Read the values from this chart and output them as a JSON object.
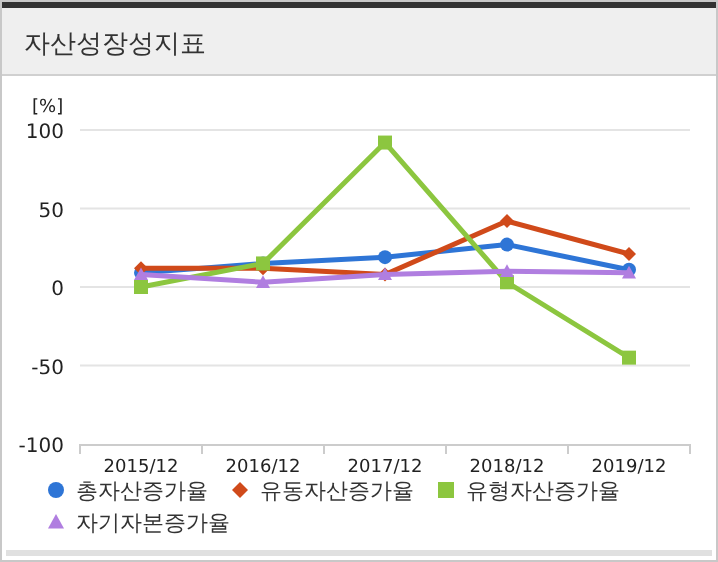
{
  "chart_data": {
    "type": "line",
    "title": "자산성장성지표",
    "ylabel": "[%]",
    "categories": [
      "2015/12",
      "2016/12",
      "2017/12",
      "2018/12",
      "2019/12"
    ],
    "series": [
      {
        "name": "총자산증가율",
        "color": "#2e75d6",
        "marker": "circle",
        "values": [
          9,
          15,
          19,
          27,
          11
        ]
      },
      {
        "name": "유동자산증가율",
        "color": "#d04a1a",
        "marker": "diamond",
        "values": [
          12,
          12,
          8,
          42,
          21
        ]
      },
      {
        "name": "유형자산증가율",
        "color": "#8cc63f",
        "marker": "square",
        "values": [
          0,
          15,
          92,
          3,
          -45
        ]
      },
      {
        "name": "자기자본증가율",
        "color": "#b07ee0",
        "marker": "triangle",
        "values": [
          8,
          3,
          8,
          10,
          9
        ]
      }
    ],
    "ylim": [
      -100,
      100
    ],
    "yticks": [
      -100,
      -50,
      0,
      50,
      100
    ],
    "grid": "y",
    "legend": "bottom"
  }
}
